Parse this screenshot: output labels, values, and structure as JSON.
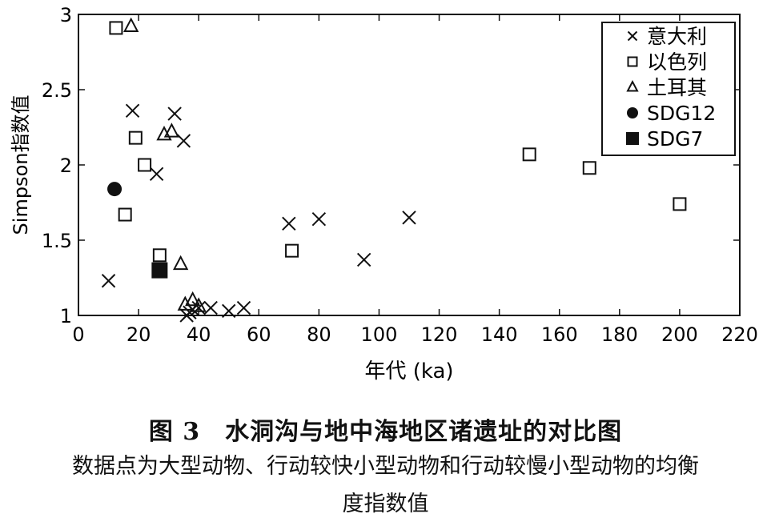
{
  "chart_data": {
    "type": "scatter",
    "xlabel": "年代 (ka)",
    "ylabel": "Simpson指数值",
    "xlim": [
      0,
      220
    ],
    "ylim": [
      1,
      3
    ],
    "xticks": [
      0,
      20,
      40,
      60,
      80,
      100,
      120,
      140,
      160,
      180,
      200,
      220
    ],
    "yticks": [
      1,
      1.5,
      2,
      2.5,
      3
    ],
    "ytick_labels": [
      "1",
      "1.5",
      "2",
      "2.5",
      "3"
    ],
    "legend_position": "top-right",
    "grid": false,
    "series": [
      {
        "name": "意大利",
        "marker": "x",
        "points": [
          [
            10,
            1.23
          ],
          [
            18,
            2.36
          ],
          [
            26,
            1.94
          ],
          [
            32,
            2.34
          ],
          [
            35,
            2.16
          ],
          [
            36,
            1.0
          ],
          [
            37,
            1.02
          ],
          [
            38,
            1.04
          ],
          [
            40,
            1.05
          ],
          [
            44,
            1.05
          ],
          [
            50,
            1.03
          ],
          [
            55,
            1.05
          ],
          [
            70,
            1.61
          ],
          [
            80,
            1.64
          ],
          [
            95,
            1.37
          ],
          [
            110,
            1.65
          ]
        ]
      },
      {
        "name": "以色列",
        "marker": "square-open",
        "points": [
          [
            12.5,
            2.91
          ],
          [
            15.5,
            1.67
          ],
          [
            19,
            2.18
          ],
          [
            22,
            2.0
          ],
          [
            27,
            1.4
          ],
          [
            71,
            1.43
          ],
          [
            150,
            2.07
          ],
          [
            170,
            1.98
          ],
          [
            200,
            1.74
          ]
        ]
      },
      {
        "name": "土耳其",
        "marker": "triangle-open",
        "points": [
          [
            17.5,
            2.92
          ],
          [
            28.5,
            2.2
          ],
          [
            31,
            2.22
          ],
          [
            34,
            1.34
          ],
          [
            35.5,
            1.07
          ],
          [
            38,
            1.1
          ],
          [
            40,
            1.06
          ]
        ]
      },
      {
        "name": "SDG12",
        "marker": "circle-filled",
        "points": [
          [
            12,
            1.84
          ]
        ]
      },
      {
        "name": "SDG7",
        "marker": "square-filled",
        "points": [
          [
            27,
            1.3
          ]
        ]
      }
    ]
  },
  "caption": {
    "title": "图 3　水洞沟与地中海地区诸遗址的对比图",
    "line1": "数据点为大型动物、行动较快小型动物和行动较慢小型动物的均衡",
    "line2": "度指数值"
  }
}
